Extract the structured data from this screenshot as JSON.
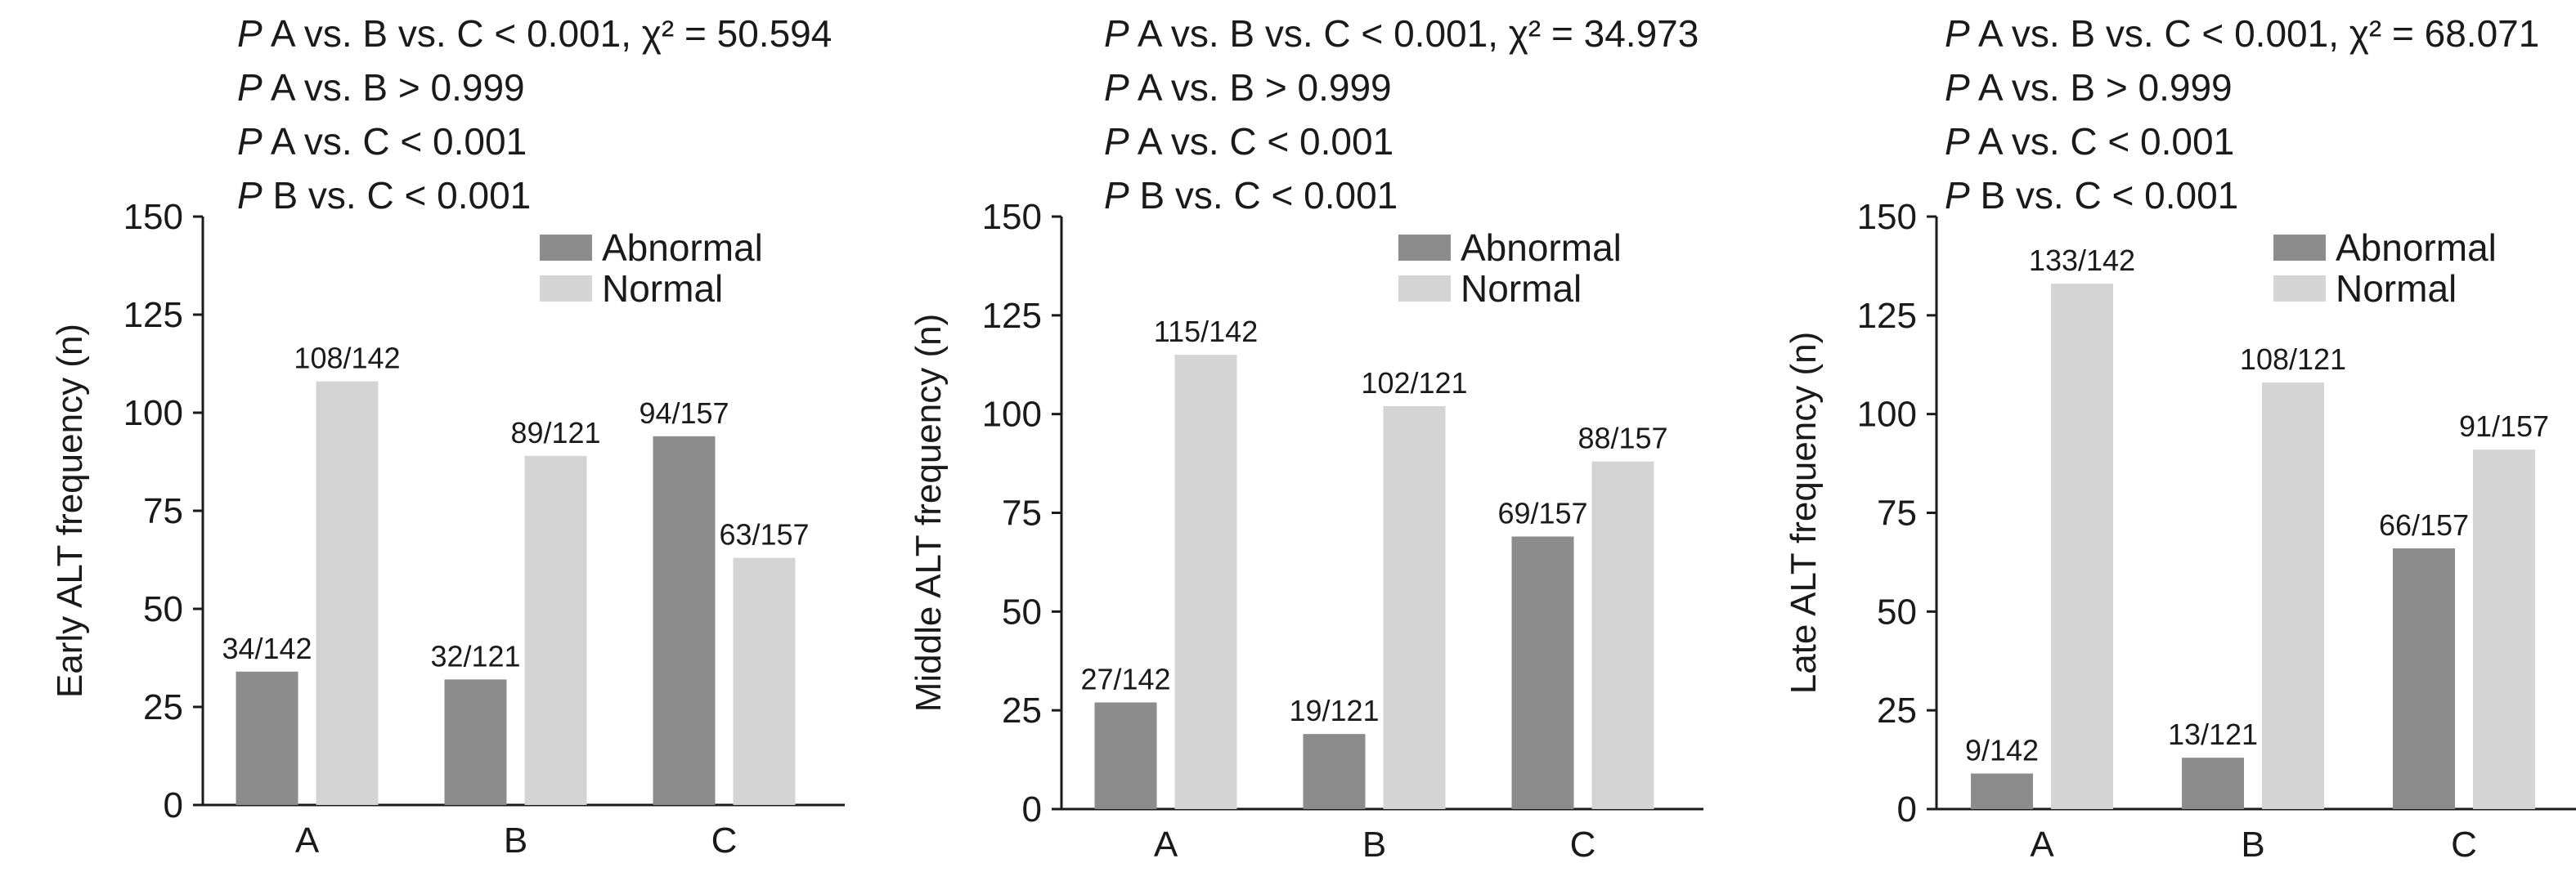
{
  "figure": {
    "colors": {
      "abnormal": "#8c8c8c",
      "normal": "#d4d4d4",
      "axis": "#1a1a1a"
    },
    "legend_labels": [
      "Abnormal",
      "Normal"
    ]
  },
  "chart_data": [
    {
      "type": "bar",
      "categories": [
        "A",
        "B",
        "C"
      ],
      "ylabel": "Early ALT frequency (n)",
      "ylim": [
        0,
        150
      ],
      "yticks": [
        0,
        25,
        50,
        75,
        100,
        125,
        150
      ],
      "legend": {
        "position": "top-right",
        "entries": [
          "Abnormal",
          "Normal"
        ]
      },
      "stats": [
        {
          "p": "P",
          "text": " A vs. B vs. C < 0.001, χ² = 50.594"
        },
        {
          "p": "P",
          "text": " A vs. B > 0.999"
        },
        {
          "p": "P",
          "text": " A vs. C < 0.001"
        },
        {
          "p": "P",
          "text": " B vs. C < 0.001"
        }
      ],
      "series": [
        {
          "name": "Abnormal",
          "values": [
            34,
            32,
            94
          ],
          "labels": [
            "34/142",
            "32/121",
            "94/157"
          ]
        },
        {
          "name": "Normal",
          "values": [
            108,
            89,
            63
          ],
          "labels": [
            "108/142",
            "89/121",
            "63/157"
          ]
        }
      ]
    },
    {
      "type": "bar",
      "categories": [
        "A",
        "B",
        "C"
      ],
      "ylabel": "Middle ALT frequency (n)",
      "ylim": [
        0,
        150
      ],
      "yticks": [
        0,
        25,
        50,
        75,
        100,
        125,
        150
      ],
      "legend": {
        "position": "top-right",
        "entries": [
          "Abnormal",
          "Normal"
        ]
      },
      "stats": [
        {
          "p": "P",
          "text": " A vs. B vs. C < 0.001, χ² = 34.973"
        },
        {
          "p": "P",
          "text": " A vs. B > 0.999"
        },
        {
          "p": "P",
          "text": " A vs. C < 0.001"
        },
        {
          "p": "P",
          "text": " B vs. C < 0.001"
        }
      ],
      "series": [
        {
          "name": "Abnormal",
          "values": [
            27,
            19,
            69
          ],
          "labels": [
            "27/142",
            "19/121",
            "69/157"
          ]
        },
        {
          "name": "Normal",
          "values": [
            115,
            102,
            88
          ],
          "labels": [
            "115/142",
            "102/121",
            "88/157"
          ]
        }
      ]
    },
    {
      "type": "bar",
      "categories": [
        "A",
        "B",
        "C"
      ],
      "ylabel": "Late ALT frequency (n)",
      "ylim": [
        0,
        150
      ],
      "yticks": [
        0,
        25,
        50,
        75,
        100,
        125,
        150
      ],
      "legend": {
        "position": "top-right",
        "entries": [
          "Abnormal",
          "Normal"
        ]
      },
      "stats": [
        {
          "p": "P",
          "text": " A vs. B vs. C < 0.001, χ² = 68.071"
        },
        {
          "p": "P",
          "text": " A vs. B > 0.999"
        },
        {
          "p": "P",
          "text": " A vs. C < 0.001"
        },
        {
          "p": "P",
          "text": " B vs. C < 0.001"
        }
      ],
      "series": [
        {
          "name": "Abnormal",
          "values": [
            9,
            13,
            66
          ],
          "labels": [
            "9/142",
            "13/121",
            "66/157"
          ]
        },
        {
          "name": "Normal",
          "values": [
            133,
            108,
            91
          ],
          "labels": [
            "133/142",
            "108/121",
            "91/157"
          ]
        }
      ]
    }
  ]
}
